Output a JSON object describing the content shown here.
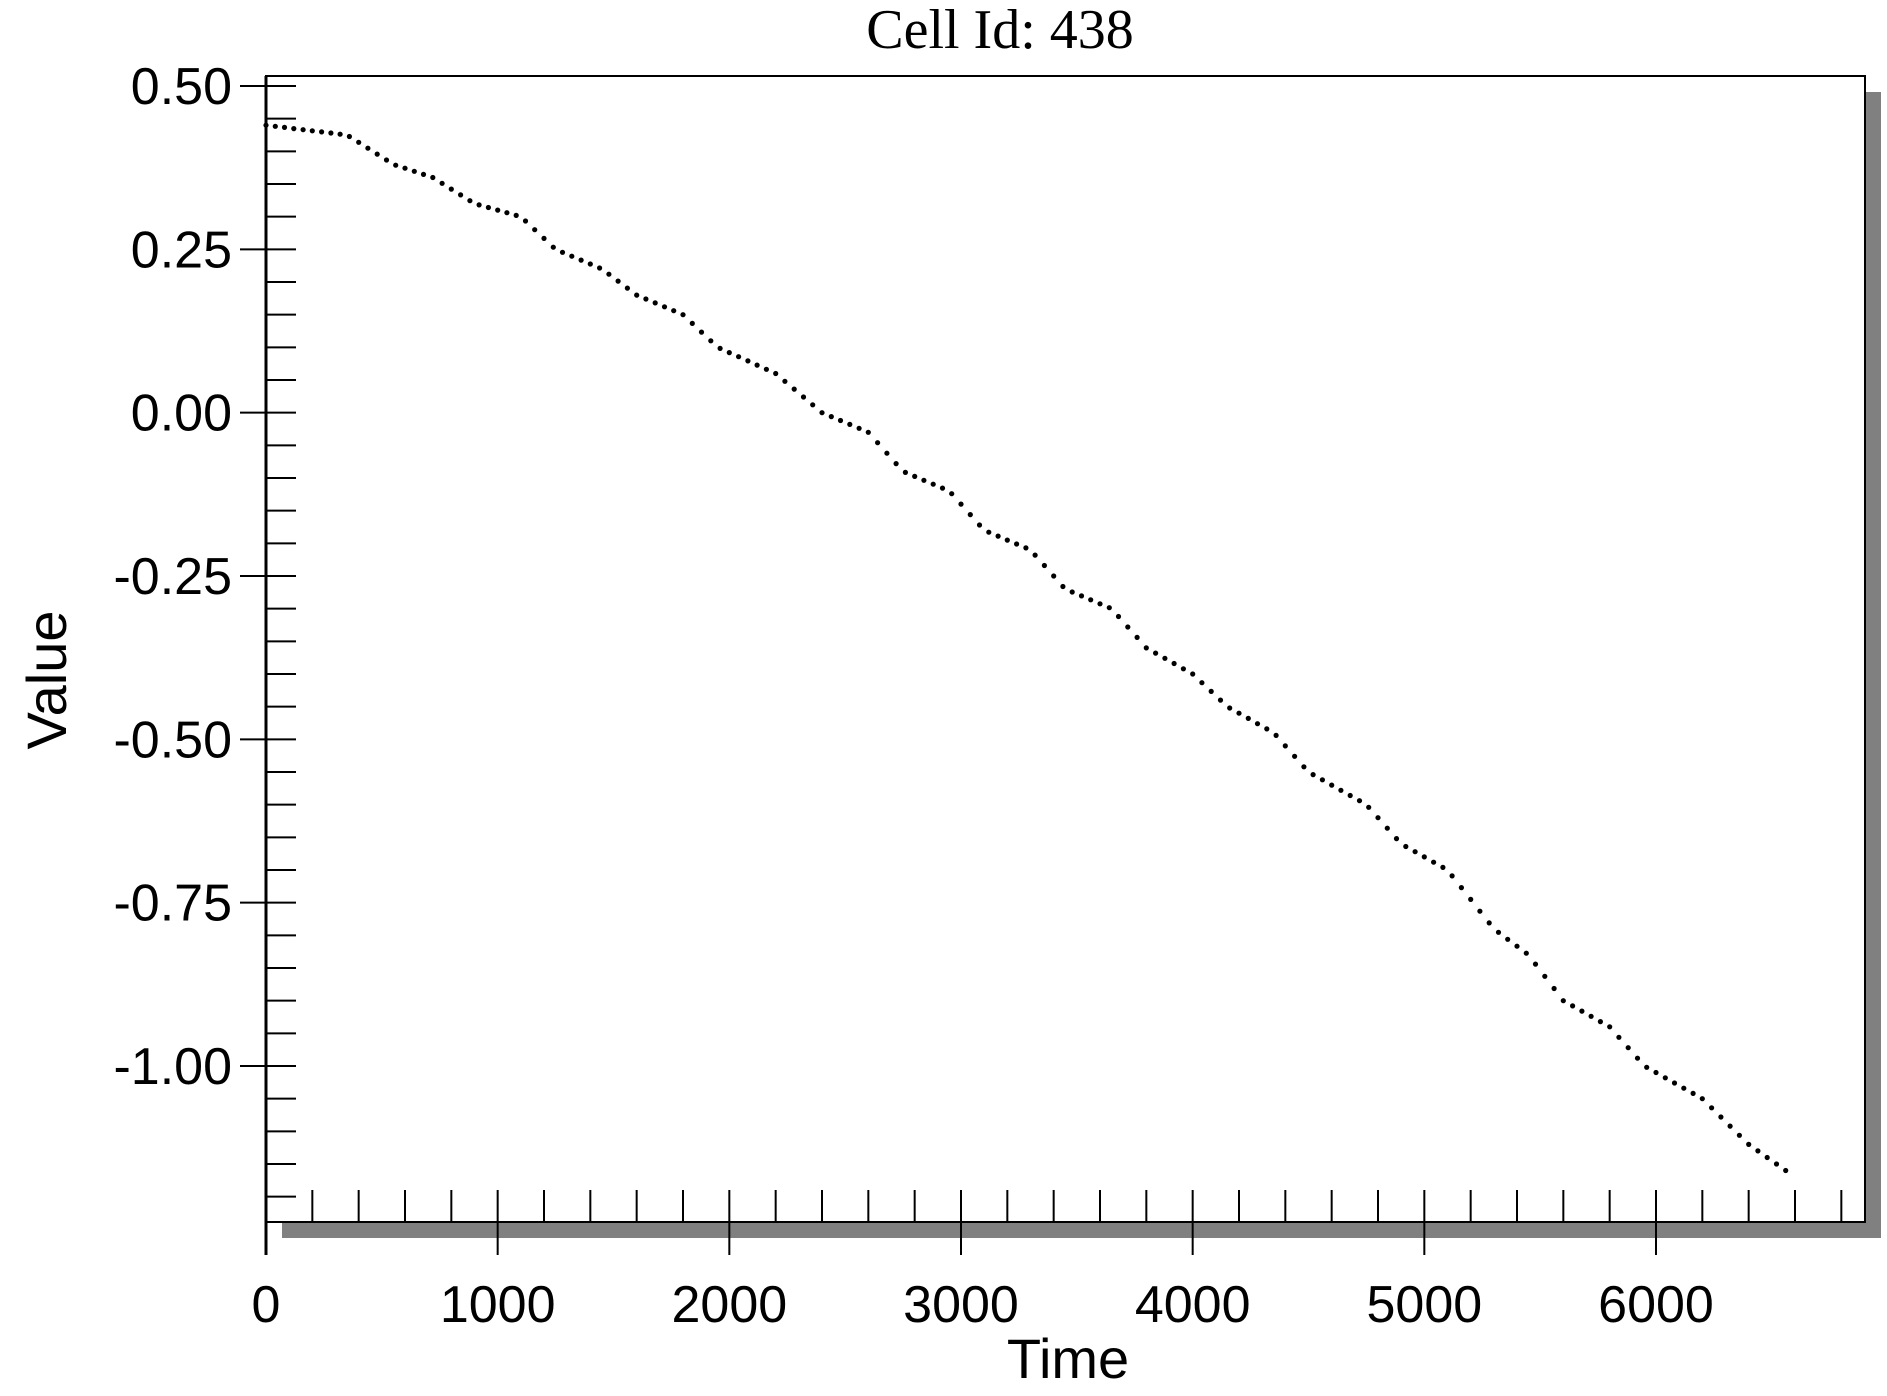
{
  "chart_data": {
    "type": "scatter",
    "title": "Cell Id: 438",
    "xlabel": "Time",
    "ylabel": "Value",
    "xlim": [
      0,
      6900
    ],
    "ylim": [
      -1.25,
      0.52
    ],
    "x_ticks": [
      0,
      1000,
      2000,
      3000,
      4000,
      5000,
      6000
    ],
    "x_tick_labels": [
      "0",
      "1000",
      "2000",
      "3000",
      "4000",
      "5000",
      "6000"
    ],
    "y_ticks": [
      0.5,
      0.25,
      0.0,
      -0.25,
      -0.5,
      -0.75,
      -1.0
    ],
    "y_tick_labels": [
      "0.50",
      "0.25",
      "0.00",
      "-0.25",
      "-0.50",
      "-0.75",
      "-1.00"
    ],
    "grid": false,
    "legend": "none",
    "colors": {
      "marker": "#000000",
      "frame": "#000000",
      "shadow": "#808080",
      "background": "#ffffff"
    },
    "points_sampled_every": 40,
    "x_start": 0,
    "x_end": 6560,
    "series": [
      {
        "anchors": [
          [
            0,
            0.44
          ],
          [
            350,
            0.425
          ],
          [
            550,
            0.38
          ],
          [
            720,
            0.36
          ],
          [
            900,
            0.32
          ],
          [
            1100,
            0.3
          ],
          [
            1250,
            0.25
          ],
          [
            1450,
            0.22
          ],
          [
            1600,
            0.18
          ],
          [
            1800,
            0.15
          ],
          [
            1950,
            0.1
          ],
          [
            2200,
            0.06
          ],
          [
            2400,
            0.0
          ],
          [
            2600,
            -0.03
          ],
          [
            2750,
            -0.09
          ],
          [
            2950,
            -0.12
          ],
          [
            3100,
            -0.18
          ],
          [
            3300,
            -0.21
          ],
          [
            3450,
            -0.27
          ],
          [
            3650,
            -0.3
          ],
          [
            3800,
            -0.36
          ],
          [
            4000,
            -0.4
          ],
          [
            4150,
            -0.45
          ],
          [
            4350,
            -0.49
          ],
          [
            4500,
            -0.55
          ],
          [
            4750,
            -0.6
          ],
          [
            4900,
            -0.66
          ],
          [
            5100,
            -0.7
          ],
          [
            5300,
            -0.79
          ],
          [
            5450,
            -0.83
          ],
          [
            5600,
            -0.9
          ],
          [
            5800,
            -0.94
          ],
          [
            5950,
            -1.0
          ],
          [
            6200,
            -1.05
          ],
          [
            6400,
            -1.12
          ],
          [
            6560,
            -1.16
          ]
        ]
      }
    ]
  }
}
